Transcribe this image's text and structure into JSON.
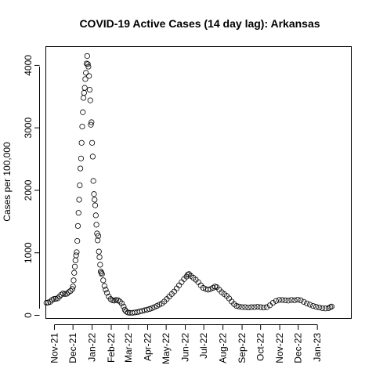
{
  "chart_data": {
    "type": "scatter",
    "title": "COVID-19 Active Cases (14 day lag): Arkansas",
    "xlabel": "",
    "ylabel": "Cases per 100,000",
    "x_axis_kind": "date",
    "xlim": [
      "2021-10-18",
      "2023-02-25"
    ],
    "ylim": [
      -50,
      4300
    ],
    "y_ticks": [
      0,
      1000,
      2000,
      3000,
      4000
    ],
    "x_ticks": [
      {
        "date": "2021-11-01",
        "label": "Nov-21"
      },
      {
        "date": "2021-12-01",
        "label": "Dec-21"
      },
      {
        "date": "2022-01-01",
        "label": "Jan-22"
      },
      {
        "date": "2022-02-01",
        "label": "Feb-22"
      },
      {
        "date": "2022-03-01",
        "label": "Mar-22"
      },
      {
        "date": "2022-04-01",
        "label": "Apr-22"
      },
      {
        "date": "2022-05-01",
        "label": "May-22"
      },
      {
        "date": "2022-06-01",
        "label": "Jun-22"
      },
      {
        "date": "2022-07-01",
        "label": "Jul-22"
      },
      {
        "date": "2022-08-01",
        "label": "Aug-22"
      },
      {
        "date": "2022-09-01",
        "label": "Sep-22"
      },
      {
        "date": "2022-10-01",
        "label": "Oct-22"
      },
      {
        "date": "2022-11-01",
        "label": "Nov-22"
      },
      {
        "date": "2022-12-01",
        "label": "Dec-22"
      },
      {
        "date": "2023-01-01",
        "label": "Jan-23"
      }
    ],
    "grid": false,
    "legend": "none",
    "series": [
      {
        "marker": "open-circle",
        "color": "#000000",
        "points": [
          [
            "2021-10-19",
            200
          ],
          [
            "2021-10-22",
            205
          ],
          [
            "2021-10-25",
            215
          ],
          [
            "2021-10-28",
            245
          ],
          [
            "2021-10-31",
            260
          ],
          [
            "2021-11-03",
            265
          ],
          [
            "2021-11-06",
            270
          ],
          [
            "2021-11-09",
            300
          ],
          [
            "2021-11-12",
            330
          ],
          [
            "2021-11-15",
            350
          ],
          [
            "2021-11-18",
            340
          ],
          [
            "2021-11-21",
            345
          ],
          [
            "2021-11-24",
            370
          ],
          [
            "2021-11-27",
            390
          ],
          [
            "2021-11-30",
            420
          ],
          [
            "2021-12-01",
            460
          ],
          [
            "2021-12-02",
            560
          ],
          [
            "2021-12-03",
            680
          ],
          [
            "2021-12-04",
            780
          ],
          [
            "2021-12-05",
            880
          ],
          [
            "2021-12-06",
            960
          ],
          [
            "2021-12-07",
            1010
          ],
          [
            "2021-12-08",
            1190
          ],
          [
            "2021-12-09",
            1430
          ],
          [
            "2021-12-10",
            1640
          ],
          [
            "2021-12-11",
            1850
          ],
          [
            "2021-12-12",
            2080
          ],
          [
            "2021-12-13",
            2350
          ],
          [
            "2021-12-14",
            2510
          ],
          [
            "2021-12-15",
            2760
          ],
          [
            "2021-12-16",
            3020
          ],
          [
            "2021-12-17",
            3250
          ],
          [
            "2021-12-18",
            3480
          ],
          [
            "2021-12-19",
            3560
          ],
          [
            "2021-12-20",
            3640
          ],
          [
            "2021-12-21",
            3780
          ],
          [
            "2021-12-22",
            3880
          ],
          [
            "2021-12-23",
            4030
          ],
          [
            "2021-12-24",
            4150
          ],
          [
            "2021-12-25",
            4020
          ],
          [
            "2021-12-26",
            3980
          ],
          [
            "2021-12-27",
            3830
          ],
          [
            "2021-12-28",
            3610
          ],
          [
            "2021-12-29",
            3440
          ],
          [
            "2021-12-30",
            3050
          ],
          [
            "2021-12-31",
            3090
          ],
          [
            "2022-01-01",
            2760
          ],
          [
            "2022-01-02",
            2540
          ],
          [
            "2022-01-03",
            2150
          ],
          [
            "2022-01-04",
            1940
          ],
          [
            "2022-01-05",
            1850
          ],
          [
            "2022-01-06",
            1760
          ],
          [
            "2022-01-07",
            1600
          ],
          [
            "2022-01-08",
            1450
          ],
          [
            "2022-01-09",
            1310
          ],
          [
            "2022-01-10",
            1200
          ],
          [
            "2022-01-11",
            1270
          ],
          [
            "2022-01-12",
            1020
          ],
          [
            "2022-01-13",
            930
          ],
          [
            "2022-01-14",
            810
          ],
          [
            "2022-01-15",
            700
          ],
          [
            "2022-01-16",
            680
          ],
          [
            "2022-01-17",
            660
          ],
          [
            "2022-01-19",
            560
          ],
          [
            "2022-01-21",
            470
          ],
          [
            "2022-01-23",
            410
          ],
          [
            "2022-01-25",
            360
          ],
          [
            "2022-01-28",
            300
          ],
          [
            "2022-01-31",
            260
          ],
          [
            "2022-02-03",
            240
          ],
          [
            "2022-02-06",
            235
          ],
          [
            "2022-02-09",
            245
          ],
          [
            "2022-02-12",
            240
          ],
          [
            "2022-02-15",
            220
          ],
          [
            "2022-02-18",
            190
          ],
          [
            "2022-02-21",
            140
          ],
          [
            "2022-02-23",
            90
          ],
          [
            "2022-02-25",
            60
          ],
          [
            "2022-02-28",
            45
          ],
          [
            "2022-03-03",
            40
          ],
          [
            "2022-03-07",
            40
          ],
          [
            "2022-03-11",
            45
          ],
          [
            "2022-03-15",
            50
          ],
          [
            "2022-03-19",
            60
          ],
          [
            "2022-03-23",
            70
          ],
          [
            "2022-03-27",
            80
          ],
          [
            "2022-03-31",
            90
          ],
          [
            "2022-04-04",
            100
          ],
          [
            "2022-04-08",
            115
          ],
          [
            "2022-04-12",
            130
          ],
          [
            "2022-04-16",
            150
          ],
          [
            "2022-04-20",
            170
          ],
          [
            "2022-04-24",
            190
          ],
          [
            "2022-04-28",
            220
          ],
          [
            "2022-05-02",
            260
          ],
          [
            "2022-05-06",
            300
          ],
          [
            "2022-05-10",
            340
          ],
          [
            "2022-05-14",
            380
          ],
          [
            "2022-05-18",
            430
          ],
          [
            "2022-05-22",
            480
          ],
          [
            "2022-05-26",
            530
          ],
          [
            "2022-05-30",
            580
          ],
          [
            "2022-06-03",
            620
          ],
          [
            "2022-06-05",
            650
          ],
          [
            "2022-06-07",
            660
          ],
          [
            "2022-06-10",
            630
          ],
          [
            "2022-06-14",
            600
          ],
          [
            "2022-06-18",
            570
          ],
          [
            "2022-06-22",
            530
          ],
          [
            "2022-06-26",
            480
          ],
          [
            "2022-06-30",
            440
          ],
          [
            "2022-07-04",
            420
          ],
          [
            "2022-07-08",
            410
          ],
          [
            "2022-07-12",
            420
          ],
          [
            "2022-07-16",
            440
          ],
          [
            "2022-07-19",
            460
          ],
          [
            "2022-07-22",
            450
          ],
          [
            "2022-07-26",
            410
          ],
          [
            "2022-07-30",
            370
          ],
          [
            "2022-08-03",
            340
          ],
          [
            "2022-08-07",
            310
          ],
          [
            "2022-08-11",
            270
          ],
          [
            "2022-08-15",
            220
          ],
          [
            "2022-08-19",
            180
          ],
          [
            "2022-08-23",
            150
          ],
          [
            "2022-08-27",
            140
          ],
          [
            "2022-09-01",
            130
          ],
          [
            "2022-09-06",
            130
          ],
          [
            "2022-09-11",
            125
          ],
          [
            "2022-09-16",
            130
          ],
          [
            "2022-09-21",
            130
          ],
          [
            "2022-09-26",
            135
          ],
          [
            "2022-10-01",
            130
          ],
          [
            "2022-10-06",
            125
          ],
          [
            "2022-10-11",
            130
          ],
          [
            "2022-10-16",
            160
          ],
          [
            "2022-10-21",
            200
          ],
          [
            "2022-10-26",
            230
          ],
          [
            "2022-10-31",
            245
          ],
          [
            "2022-11-05",
            245
          ],
          [
            "2022-11-10",
            240
          ],
          [
            "2022-11-15",
            235
          ],
          [
            "2022-11-20",
            245
          ],
          [
            "2022-11-25",
            240
          ],
          [
            "2022-11-30",
            250
          ],
          [
            "2022-12-05",
            240
          ],
          [
            "2022-12-10",
            215
          ],
          [
            "2022-12-15",
            190
          ],
          [
            "2022-12-20",
            170
          ],
          [
            "2022-12-25",
            150
          ],
          [
            "2022-12-30",
            135
          ],
          [
            "2023-01-04",
            125
          ],
          [
            "2023-01-09",
            115
          ],
          [
            "2023-01-14",
            110
          ],
          [
            "2023-01-19",
            115
          ],
          [
            "2023-01-22",
            130
          ],
          [
            "2023-01-24",
            140
          ]
        ]
      }
    ]
  }
}
